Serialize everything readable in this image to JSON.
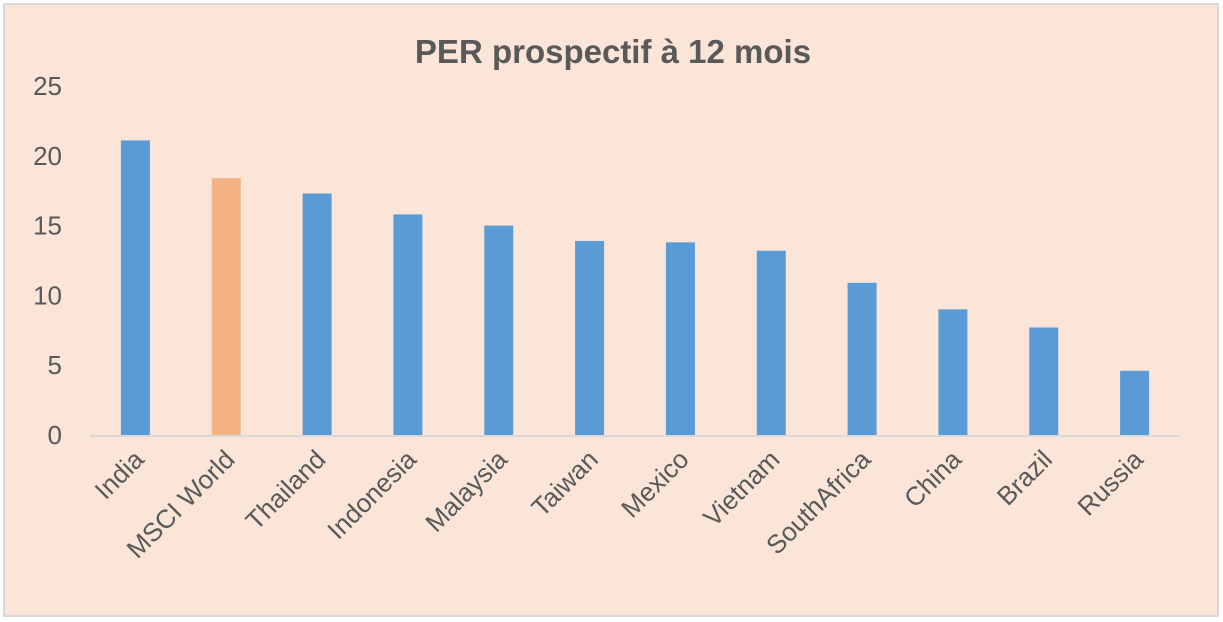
{
  "chart_data": {
    "type": "bar",
    "title": "PER prospectif à 12 mois",
    "xlabel": "",
    "ylabel": "",
    "categories": [
      "India",
      "MSCI World",
      "Thailand",
      "Indonesia",
      "Malaysia",
      "Taiwan",
      "Mexico",
      "Vietnam",
      "SouthAfrica",
      "China",
      "Brazil",
      "Russia"
    ],
    "values": [
      21.1,
      18.4,
      17.3,
      15.8,
      15.0,
      13.9,
      13.8,
      13.2,
      10.9,
      9.0,
      7.7,
      4.6
    ],
    "highlight_index": 1,
    "ylim": [
      0,
      25
    ],
    "yticks": [
      "0",
      "5",
      "10",
      "15",
      "20",
      "25"
    ],
    "grid": false,
    "legend": "none",
    "colors": {
      "bar": "#5b9bd5",
      "highlight": "#f4b183",
      "background": "#fae5d8",
      "axis": "#d9d9d9",
      "text": "#595959"
    }
  }
}
